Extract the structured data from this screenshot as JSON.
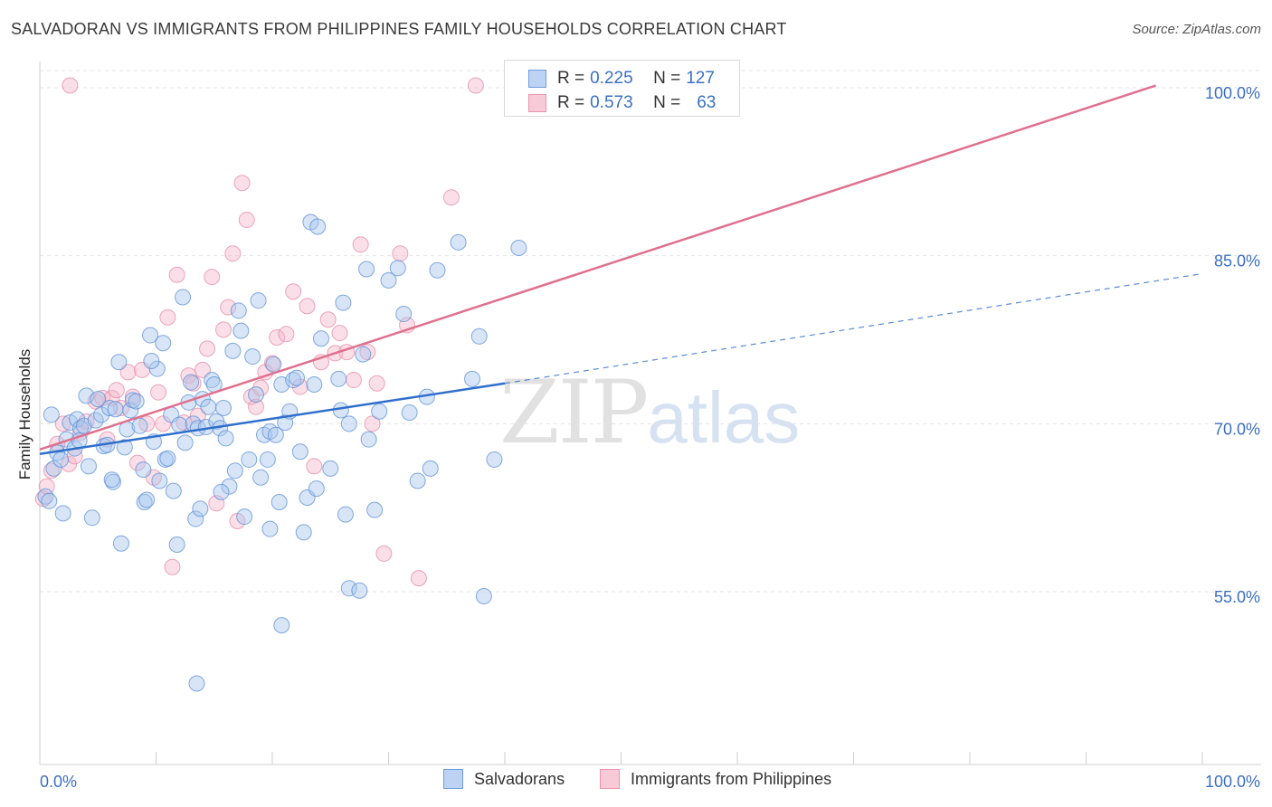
{
  "header": {
    "title": "SALVADORAN VS IMMIGRANTS FROM PHILIPPINES FAMILY HOUSEHOLDS CORRELATION CHART",
    "source": "Source: ZipAtlas.com"
  },
  "watermark": {
    "zip": "ZIP",
    "atlas": "atlas"
  },
  "legend_top": {
    "rows": [
      {
        "r_label": "R =",
        "r_value": "0.225",
        "n_label": "N =",
        "n_value": "127"
      },
      {
        "r_label": "R =",
        "r_value": "0.573",
        "n_label": "N =",
        "n_value": "63"
      }
    ]
  },
  "chart_data": {
    "type": "scatter",
    "title": "SALVADORAN VS IMMIGRANTS FROM PHILIPPINES FAMILY HOUSEHOLDS CORRELATION CHART",
    "xlabel": "",
    "ylabel": "Family Households",
    "xlim": [
      0,
      100
    ],
    "ylim": [
      41.0,
      102.5
    ],
    "x_tick_labels": [
      "0.0%",
      "100.0%"
    ],
    "y_ticks": [
      55.0,
      70.0,
      85.0,
      100.0
    ],
    "y_tick_labels": [
      "55.0%",
      "70.0%",
      "85.0%",
      "100.0%"
    ],
    "grid": true,
    "colors": {
      "blue_fill": "#a9c6ee",
      "blue_stroke": "#5b8fd6",
      "blue_line": "#2f6fcc",
      "pink_fill": "#f5b9cb",
      "pink_stroke": "#e68aa6",
      "pink_line": "#e0708f",
      "tick_text": "#3b6fc4"
    },
    "series": [
      {
        "name": "Salvadorans",
        "r": 0.225,
        "n": 127,
        "trend": {
          "x0": 0,
          "y0": 67.3,
          "x1": 40,
          "y1": 73.6,
          "dashed_to_x": 100,
          "dashed_to_y": 83.4
        },
        "points": [
          [
            0.5,
            63.5
          ],
          [
            0.8,
            63.1
          ],
          [
            1.2,
            66.0
          ],
          [
            1.5,
            67.4
          ],
          [
            1.8,
            66.8
          ],
          [
            2.0,
            62.0
          ],
          [
            2.3,
            68.6
          ],
          [
            2.6,
            70.1
          ],
          [
            3.0,
            67.8
          ],
          [
            3.2,
            70.4
          ],
          [
            3.5,
            69.6
          ],
          [
            3.8,
            69.8
          ],
          [
            4.0,
            72.5
          ],
          [
            4.2,
            66.2
          ],
          [
            4.5,
            61.6
          ],
          [
            4.8,
            70.3
          ],
          [
            5.0,
            72.2
          ],
          [
            5.3,
            70.8
          ],
          [
            5.5,
            68.0
          ],
          [
            5.8,
            68.1
          ],
          [
            6.0,
            71.4
          ],
          [
            6.3,
            64.8
          ],
          [
            6.5,
            71.3
          ],
          [
            6.8,
            75.5
          ],
          [
            7.0,
            59.3
          ],
          [
            7.3,
            67.9
          ],
          [
            7.5,
            69.5
          ],
          [
            7.8,
            71.2
          ],
          [
            8.0,
            72.1
          ],
          [
            8.3,
            72.0
          ],
          [
            8.6,
            69.8
          ],
          [
            8.9,
            65.9
          ],
          [
            9.0,
            63.0
          ],
          [
            9.2,
            63.2
          ],
          [
            9.5,
            77.9
          ],
          [
            9.8,
            68.4
          ],
          [
            10.1,
            74.9
          ],
          [
            10.3,
            64.9
          ],
          [
            10.6,
            77.2
          ],
          [
            10.8,
            66.8
          ],
          [
            11.0,
            66.9
          ],
          [
            11.3,
            70.8
          ],
          [
            11.5,
            64.0
          ],
          [
            11.8,
            59.2
          ],
          [
            12.0,
            69.9
          ],
          [
            12.3,
            81.3
          ],
          [
            12.5,
            68.3
          ],
          [
            12.8,
            71.9
          ],
          [
            13.0,
            73.7
          ],
          [
            13.2,
            70.0
          ],
          [
            13.4,
            61.5
          ],
          [
            13.6,
            69.6
          ],
          [
            13.8,
            62.4
          ],
          [
            14.0,
            72.2
          ],
          [
            14.3,
            69.7
          ],
          [
            14.5,
            71.5
          ],
          [
            14.8,
            73.9
          ],
          [
            15.0,
            73.5
          ],
          [
            15.2,
            70.2
          ],
          [
            15.5,
            69.6
          ],
          [
            15.8,
            71.4
          ],
          [
            16.0,
            68.7
          ],
          [
            16.3,
            64.4
          ],
          [
            16.6,
            76.5
          ],
          [
            16.8,
            65.8
          ],
          [
            17.1,
            80.1
          ],
          [
            17.3,
            78.3
          ],
          [
            17.6,
            61.7
          ],
          [
            18.0,
            66.8
          ],
          [
            18.3,
            76.0
          ],
          [
            18.6,
            72.6
          ],
          [
            18.8,
            81.0
          ],
          [
            19.0,
            65.2
          ],
          [
            19.3,
            69.0
          ],
          [
            19.6,
            66.8
          ],
          [
            19.8,
            69.3
          ],
          [
            20.1,
            75.3
          ],
          [
            20.3,
            69.0
          ],
          [
            20.6,
            63.0
          ],
          [
            20.8,
            73.5
          ],
          [
            21.1,
            70.1
          ],
          [
            21.5,
            71.1
          ],
          [
            21.8,
            73.9
          ],
          [
            22.1,
            74.1
          ],
          [
            22.7,
            60.3
          ],
          [
            23.0,
            63.4
          ],
          [
            23.3,
            88.0
          ],
          [
            23.6,
            73.5
          ],
          [
            23.8,
            64.2
          ],
          [
            23.9,
            87.6
          ],
          [
            24.2,
            77.6
          ],
          [
            25.0,
            66.0
          ],
          [
            25.7,
            74.0
          ],
          [
            25.9,
            71.2
          ],
          [
            26.1,
            80.8
          ],
          [
            26.3,
            61.9
          ],
          [
            26.6,
            55.3
          ],
          [
            27.5,
            55.1
          ],
          [
            27.8,
            76.2
          ],
          [
            28.1,
            83.8
          ],
          [
            28.3,
            68.6
          ],
          [
            29.2,
            71.1
          ],
          [
            30.0,
            82.8
          ],
          [
            30.8,
            83.9
          ],
          [
            31.3,
            79.8
          ],
          [
            31.8,
            71.0
          ],
          [
            32.5,
            64.9
          ],
          [
            33.6,
            66.0
          ],
          [
            34.2,
            83.7
          ],
          [
            36.0,
            86.2
          ],
          [
            37.2,
            74.0
          ],
          [
            37.8,
            77.8
          ],
          [
            38.2,
            54.6
          ],
          [
            39.1,
            66.8
          ],
          [
            41.2,
            85.7
          ],
          [
            20.8,
            52.0
          ],
          [
            13.5,
            46.8
          ],
          [
            1.0,
            70.8
          ],
          [
            3.4,
            68.5
          ],
          [
            6.2,
            65.0
          ],
          [
            9.6,
            75.6
          ],
          [
            15.6,
            63.9
          ],
          [
            19.8,
            60.6
          ],
          [
            22.4,
            67.5
          ],
          [
            26.6,
            70.0
          ],
          [
            28.8,
            62.3
          ],
          [
            33.3,
            72.4
          ]
        ]
      },
      {
        "name": "Immigrants from Philippines",
        "r": 0.573,
        "n": 63,
        "trend": {
          "x0": 0,
          "y0": 67.7,
          "x1": 96,
          "y1": 100.2
        },
        "points": [
          [
            0.3,
            63.3
          ],
          [
            0.6,
            64.4
          ],
          [
            1.0,
            65.8
          ],
          [
            1.5,
            68.2
          ],
          [
            2.0,
            70.0
          ],
          [
            2.5,
            66.4
          ],
          [
            3.0,
            67.1
          ],
          [
            3.5,
            69.2
          ],
          [
            4.0,
            70.2
          ],
          [
            4.8,
            72.0
          ],
          [
            5.4,
            72.3
          ],
          [
            5.8,
            68.6
          ],
          [
            6.2,
            72.3
          ],
          [
            6.6,
            73.0
          ],
          [
            7.0,
            71.4
          ],
          [
            7.6,
            74.6
          ],
          [
            8.0,
            72.4
          ],
          [
            8.4,
            66.5
          ],
          [
            8.8,
            74.8
          ],
          [
            9.2,
            70.0
          ],
          [
            9.8,
            65.2
          ],
          [
            10.2,
            72.8
          ],
          [
            10.6,
            70.0
          ],
          [
            11.0,
            79.5
          ],
          [
            11.4,
            57.2
          ],
          [
            11.8,
            83.3
          ],
          [
            12.4,
            70.1
          ],
          [
            12.8,
            74.3
          ],
          [
            13.2,
            73.6
          ],
          [
            13.6,
            70.7
          ],
          [
            14.0,
            74.8
          ],
          [
            14.4,
            76.7
          ],
          [
            14.8,
            83.1
          ],
          [
            15.2,
            62.9
          ],
          [
            15.8,
            78.4
          ],
          [
            16.2,
            80.4
          ],
          [
            16.6,
            85.2
          ],
          [
            17.0,
            61.3
          ],
          [
            17.4,
            91.5
          ],
          [
            17.8,
            88.2
          ],
          [
            18.2,
            72.4
          ],
          [
            18.6,
            71.5
          ],
          [
            19.0,
            73.2
          ],
          [
            19.4,
            74.6
          ],
          [
            20.0,
            75.4
          ],
          [
            20.4,
            77.7
          ],
          [
            21.2,
            78.0
          ],
          [
            21.8,
            81.8
          ],
          [
            22.4,
            73.3
          ],
          [
            23.0,
            80.5
          ],
          [
            23.6,
            66.2
          ],
          [
            24.2,
            75.5
          ],
          [
            24.8,
            79.3
          ],
          [
            25.4,
            76.3
          ],
          [
            25.8,
            78.1
          ],
          [
            26.4,
            76.4
          ],
          [
            27.0,
            73.9
          ],
          [
            27.6,
            86.0
          ],
          [
            28.2,
            76.4
          ],
          [
            28.6,
            70.0
          ],
          [
            29.0,
            73.6
          ],
          [
            29.6,
            58.4
          ],
          [
            31.0,
            85.2
          ]
        ],
        "extra_points": [
          [
            37.5,
            100.2
          ],
          [
            35.4,
            90.2
          ],
          [
            31.6,
            78.8
          ],
          [
            32.6,
            56.2
          ],
          [
            2.6,
            100.2
          ]
        ]
      }
    ]
  },
  "bottom_legend": [
    {
      "label": "Salvadorans"
    },
    {
      "label": "Immigrants from Philippines"
    }
  ],
  "axis": {
    "x_left_label": "0.0%",
    "x_right_label": "100.0%",
    "y_label": "Family Households"
  }
}
